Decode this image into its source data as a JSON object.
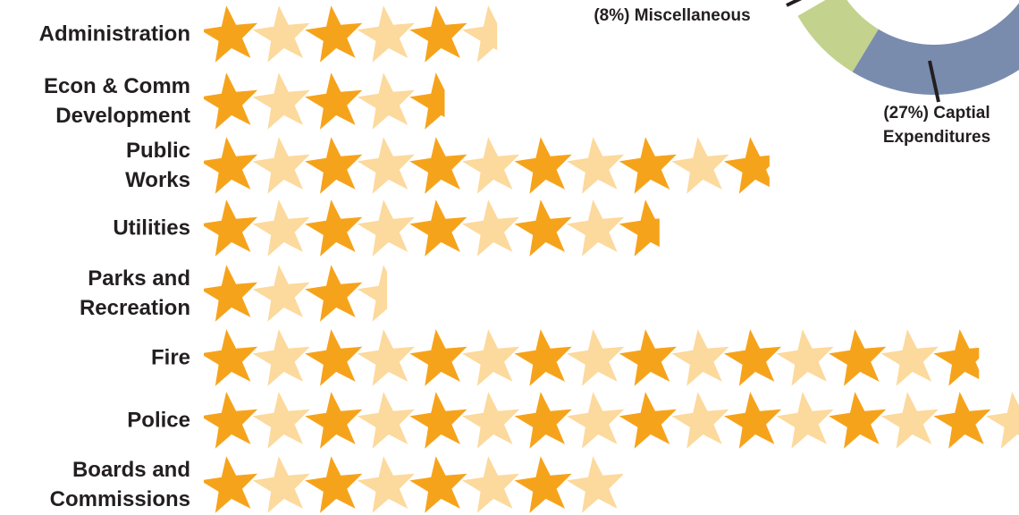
{
  "chart_data": [
    {
      "type": "pictograph",
      "categories": [
        "Administration",
        "Econ & Comm\nDevelopment",
        "Public\nWorks",
        "Utilities",
        "Parks and\nRecreation",
        "Fire",
        "Police",
        "Boards and\nCommissions"
      ],
      "values": [
        5.6,
        4.6,
        10.8,
        8.7,
        3.5,
        14.8,
        16,
        8.0
      ],
      "colors": [
        "#f6a31c",
        "#fcd99c"
      ]
    },
    {
      "type": "pie",
      "categories": [
        "Captial\nExpenditures",
        "Miscellaneous"
      ],
      "values": [
        27,
        8
      ],
      "value_labels": [
        "(27%)",
        "(8%)"
      ],
      "colors": [
        "#7a8cae",
        "#c3d28c"
      ]
    }
  ]
}
